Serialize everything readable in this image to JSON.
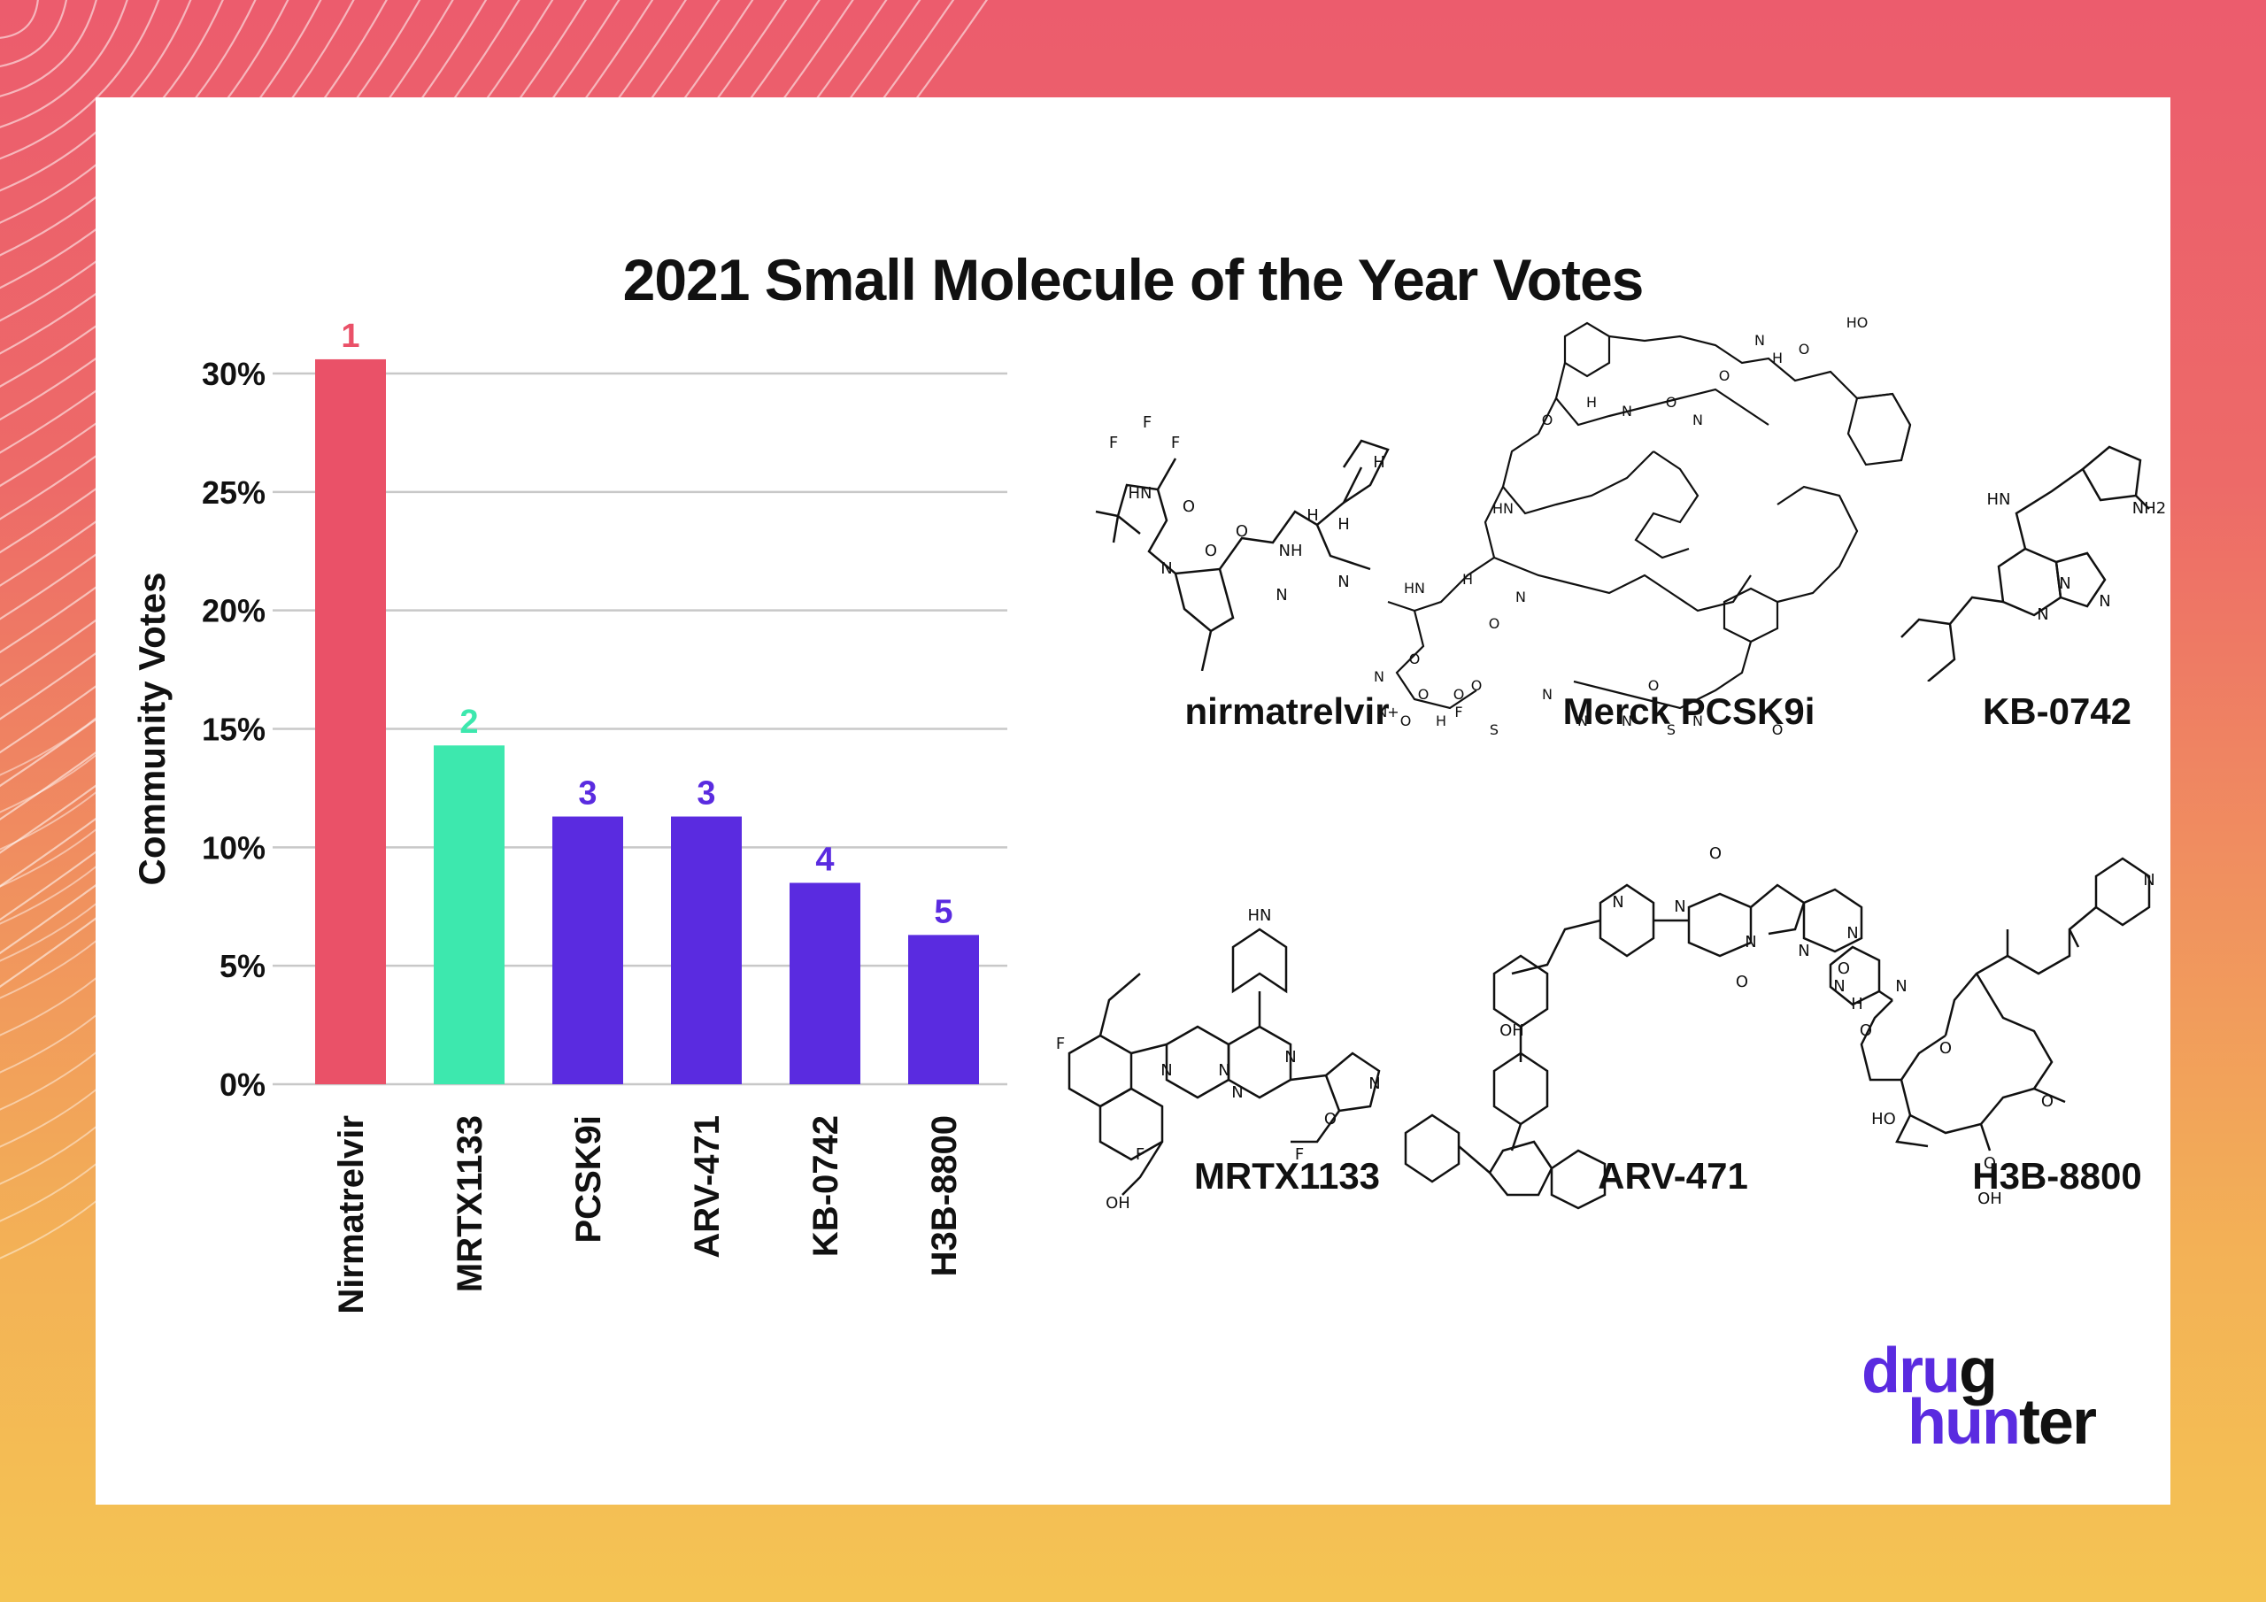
{
  "title": "2021 Small Molecule of the Year Votes",
  "colors": {
    "rank1": "#ea5168",
    "rank2": "#3de8ae",
    "rank3plus": "#5a2be0",
    "grid": "#c8c8c8"
  },
  "chart_data": {
    "type": "bar",
    "title": "2021 Small Molecule of the Year Votes",
    "ylabel": "Community Votes",
    "xlabel": "",
    "ylim": [
      0,
      30
    ],
    "yticks": [
      0,
      5,
      10,
      15,
      20,
      25,
      30
    ],
    "ytick_labels": [
      "0%",
      "5%",
      "10%",
      "15%",
      "20%",
      "25%",
      "30%"
    ],
    "grid": true,
    "categories": [
      "Nirmatrelvir",
      "MRTX1133",
      "PCSK9i",
      "ARV-471",
      "KB-0742",
      "H3B-8800"
    ],
    "values": [
      30.6,
      14.3,
      11.3,
      11.3,
      8.5,
      6.3
    ],
    "ranks": [
      "1",
      "2",
      "3",
      "3",
      "4",
      "5"
    ]
  },
  "molecules": [
    {
      "name": "nirmatrelvir",
      "labels": [
        "F",
        "F",
        "F",
        "O",
        "HN",
        "O",
        "N",
        "O",
        "NH",
        "H",
        "N",
        "N",
        "H",
        "H"
      ]
    },
    {
      "name": "Merck PCSK9i",
      "labels": [
        "HO",
        "O",
        "N",
        "H",
        "O",
        "N",
        "O",
        "N",
        "H",
        "O",
        "HN",
        "O",
        "N",
        "H",
        "HN",
        "F",
        "N",
        "N",
        "N",
        "O",
        "N",
        "O",
        "S",
        "S",
        "O",
        "H",
        "N",
        "O",
        "N+",
        "O",
        "O",
        "O"
      ]
    },
    {
      "name": "KB-0742",
      "labels": [
        "HN",
        "NH2",
        "N",
        "N",
        "N"
      ]
    },
    {
      "name": "MRTX1133",
      "labels": [
        "HN",
        "F",
        "N",
        "N",
        "N",
        "N",
        "F",
        "O",
        "N",
        "OH",
        "F"
      ]
    },
    {
      "name": "ARV-471",
      "labels": [
        "O",
        "N",
        "N",
        "N",
        "O",
        "N",
        "O",
        "N",
        "H",
        "OH"
      ]
    },
    {
      "name": "H3B-8800",
      "labels": [
        "N",
        "N",
        "N",
        "O",
        "O",
        "HO",
        "O",
        "O",
        "OH"
      ]
    }
  ],
  "logo": {
    "line1_accent": "dru",
    "line1_rest": "g",
    "line2_accent": "hun",
    "line2_rest": "ter"
  }
}
